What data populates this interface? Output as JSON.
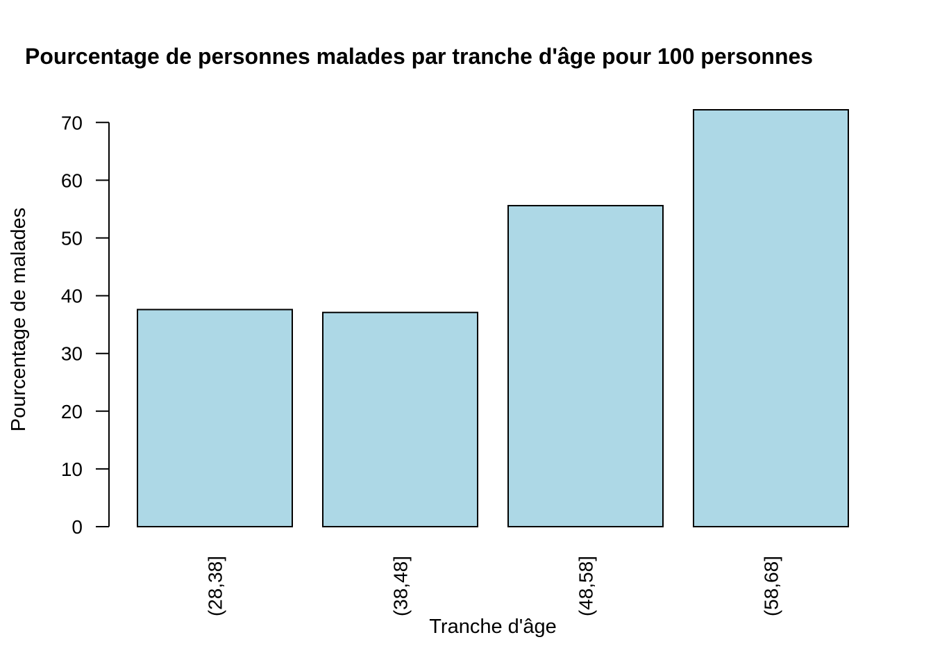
{
  "chart_data": {
    "type": "bar",
    "title": "Pourcentage de personnes malades par tranche d'âge pour 100 personnes",
    "xlabel": "Tranche d'âge",
    "ylabel": "Pourcentage de malades",
    "categories": [
      "(28,38]",
      "(38,48]",
      "(48,58]",
      "(58,68]"
    ],
    "values": [
      37.6,
      37.1,
      55.6,
      72.2
    ],
    "ylim": [
      0,
      70
    ],
    "yticks": [
      0,
      10,
      20,
      30,
      40,
      50,
      60,
      70
    ],
    "ytick_labels": [
      "0",
      "10",
      "20",
      "30",
      "40",
      "50",
      "60",
      "70"
    ],
    "grid": false,
    "bar_color": "#add8e6",
    "bar_border_color": "#000000"
  }
}
